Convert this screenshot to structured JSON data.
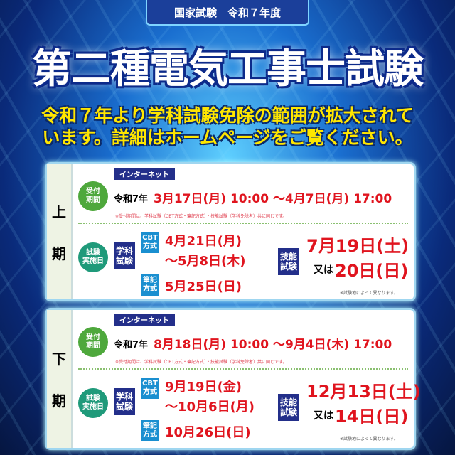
{
  "header": {
    "category": "国家試験　令和７年度",
    "title": "第二種電気工事士試験",
    "notice_line1": "令和７年より学科試験免除の範囲が拡大されて",
    "notice_line2": "います。詳細はホームページをご覧ください。"
  },
  "labels": {
    "internet": "インターネット",
    "reception": "受付\n期間",
    "exam_day": "試験\n実施日",
    "written": "学科\n試験",
    "cbt": "CBT\n方式",
    "paper": "筆記\n方式",
    "practical": "技能\n試験",
    "era": "令和7年",
    "or": "又は",
    "reception_note": "※受付期間は、学科試験（CBT方式・筆記方式）・技能試験（学科免除者）共に同じです。",
    "venue_note": "※試験地によって異なります。"
  },
  "periods": [
    {
      "name_top": "上",
      "name_bottom": "期",
      "reception": "3月17日(月) 10:00 〜4月7日(月) 17:00",
      "cbt_start": "4月21日(月)",
      "cbt_end": "〜5月8日(木)",
      "paper_date": "5月25日(日)",
      "practical_1": "7月19日(土)",
      "practical_2": "20日(日)"
    },
    {
      "name_top": "下",
      "name_bottom": "期",
      "reception": "8月18日(月) 10:00 〜9月4日(木) 17:00",
      "cbt_start": "9月19日(金)",
      "cbt_end": "〜10月6日(月)",
      "paper_date": "10月26日(日)",
      "practical_1": "12月13日(土)",
      "practical_2": "14日(日)"
    }
  ],
  "colors": {
    "accent_red": "#e0141e",
    "navy": "#232f8a",
    "green": "#4ea83c",
    "title_yellow": "#ffe600"
  }
}
